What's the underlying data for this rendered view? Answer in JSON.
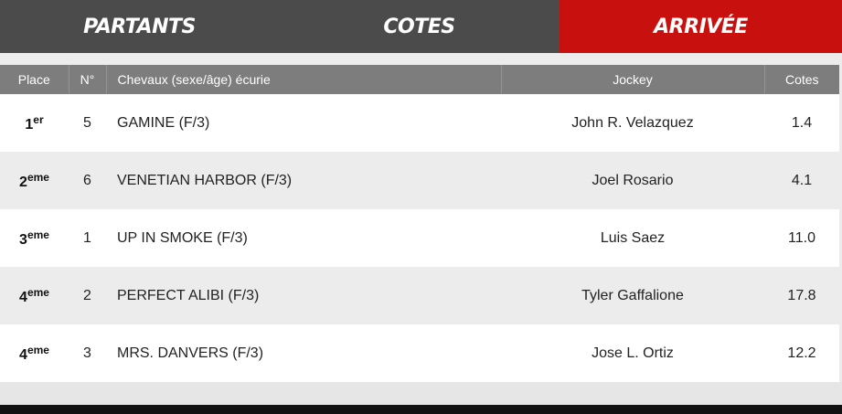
{
  "tabs": [
    {
      "label": "PARTANTS",
      "active": false
    },
    {
      "label": "COTES",
      "active": false
    },
    {
      "label": "ARRIVÉE",
      "active": true
    }
  ],
  "colors": {
    "active_tab": "#c8110f",
    "tab_bar": "#4b4b4b",
    "header_row": "#7d7d7d"
  },
  "table": {
    "headers": {
      "place": "Place",
      "num": "N°",
      "horse": "Chevaux (sexe/âge) écurie",
      "jockey": "Jockey",
      "cote": "Cotes"
    },
    "rows": [
      {
        "place": "1",
        "suffix": "er",
        "num": "5",
        "horse": "GAMINE (F/3)",
        "jockey": "John R. Velazquez",
        "cote": "1.4"
      },
      {
        "place": "2",
        "suffix": "eme",
        "num": "6",
        "horse": "VENETIAN HARBOR (F/3)",
        "jockey": "Joel Rosario",
        "cote": "4.1"
      },
      {
        "place": "3",
        "suffix": "eme",
        "num": "1",
        "horse": "UP IN SMOKE (F/3)",
        "jockey": "Luis Saez",
        "cote": "11.0"
      },
      {
        "place": "4",
        "suffix": "eme",
        "num": "2",
        "horse": "PERFECT ALIBI (F/3)",
        "jockey": "Tyler Gaffalione",
        "cote": "17.8"
      },
      {
        "place": "4",
        "suffix": "eme",
        "num": "3",
        "horse": "MRS. DANVERS (F/3)",
        "jockey": "Jose L. Ortiz",
        "cote": "12.2"
      }
    ]
  }
}
